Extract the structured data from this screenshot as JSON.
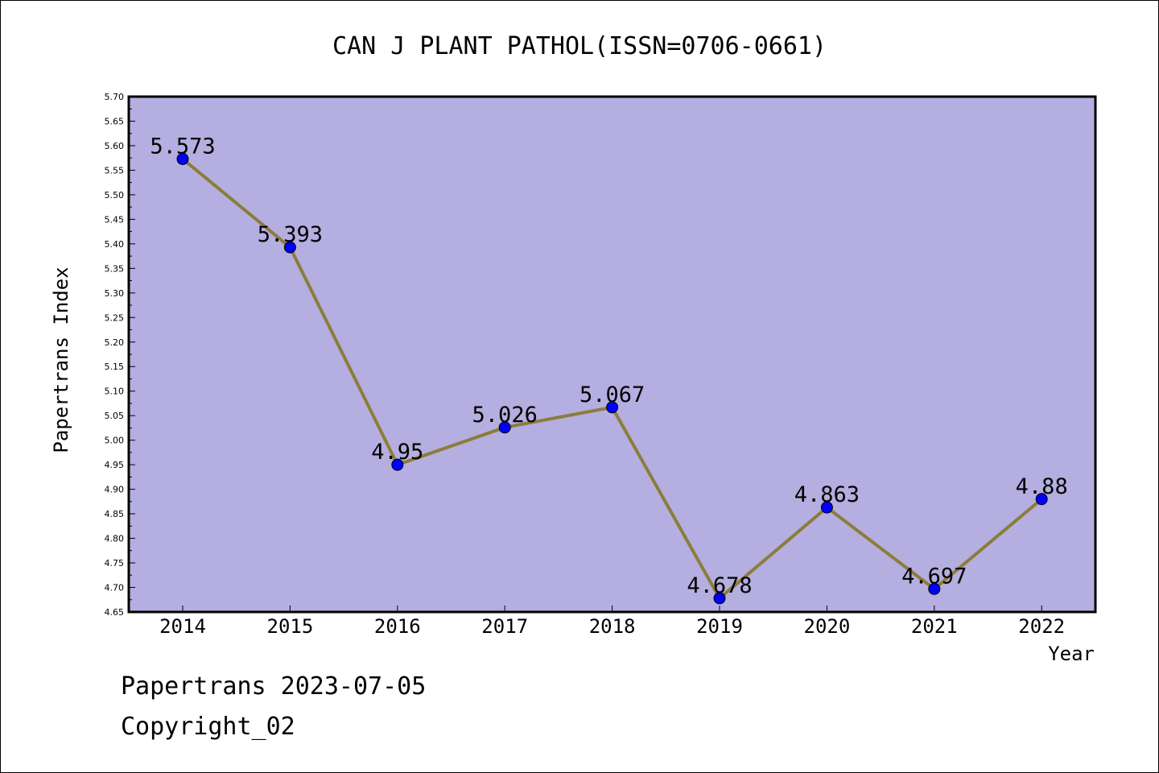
{
  "chart_data": {
    "type": "line",
    "title": "CAN J PLANT PATHOL(ISSN=0706-0661)",
    "xlabel": "Year",
    "ylabel": "Papertrans Index",
    "categories": [
      "2014",
      "2015",
      "2016",
      "2017",
      "2018",
      "2019",
      "2020",
      "2021",
      "2022"
    ],
    "values": [
      5.573,
      5.393,
      4.95,
      5.026,
      5.067,
      4.678,
      4.863,
      4.697,
      4.88
    ],
    "data_labels": [
      "5.573",
      "5.393",
      "4.95",
      "5.026",
      "5.067",
      "4.678",
      "4.863",
      "4.697",
      "4.88"
    ],
    "ylim": [
      4.65,
      5.7
    ],
    "yticks": [
      "4.65",
      "4.70",
      "4.75",
      "4.80",
      "4.85",
      "4.90",
      "4.95",
      "5.00",
      "5.05",
      "5.10",
      "5.15",
      "5.20",
      "5.25",
      "5.30",
      "5.35",
      "5.40",
      "5.45",
      "5.50",
      "5.55",
      "5.60",
      "5.65",
      "5.70"
    ],
    "grid": false,
    "colors": {
      "plot_background": "#b5aee0",
      "line": "#8b7d3a",
      "marker": "#0000ff"
    }
  },
  "footer": {
    "line1": "Papertrans 2023-07-05",
    "line2": "Copyright_02"
  }
}
